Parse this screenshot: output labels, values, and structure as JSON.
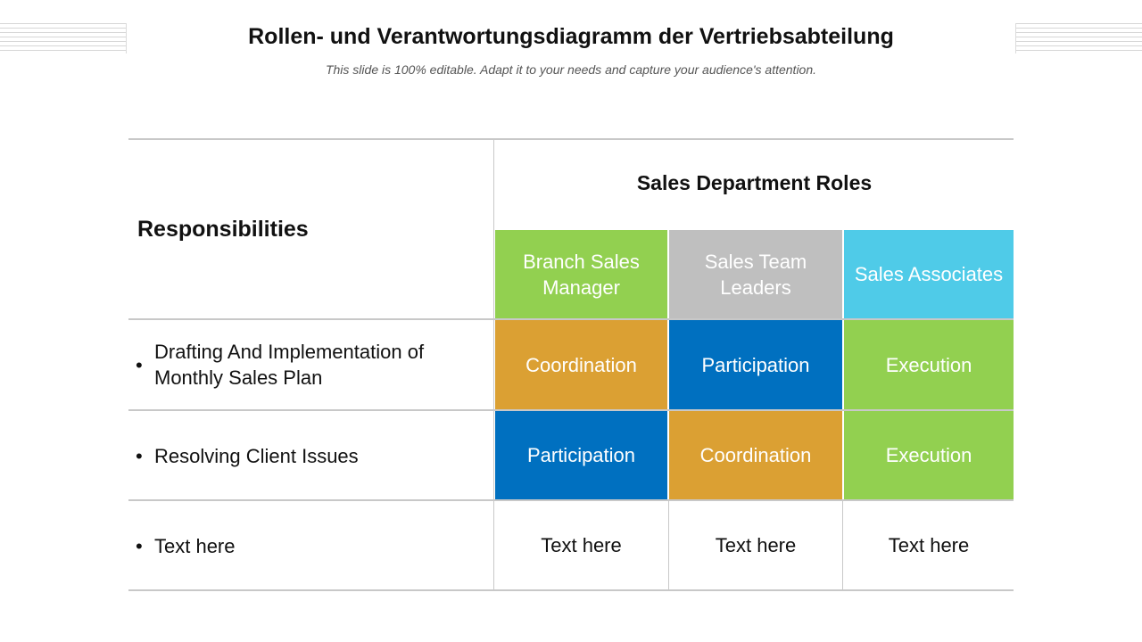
{
  "slide": {
    "title": "Rollen- und Verantwortungsdiagramm der Vertriebsabteilung",
    "subtitle": "This slide is 100% editable. Adapt it to your needs and capture your audience's attention."
  },
  "table": {
    "responsibilities_header": "Responsibilities",
    "roles_header": "Sales Department Roles",
    "bullet": "•",
    "roles": [
      {
        "label": "Branch Sales Manager",
        "color": "#92d050"
      },
      {
        "label": "Sales Team Leaders",
        "color": "#bfbfbf"
      },
      {
        "label": "Sales Associates",
        "color": "#4fcbe8"
      }
    ],
    "rows": [
      {
        "responsibility": "Drafting And Implementation of Monthly Sales Plan",
        "cells": [
          {
            "text": "Coordination",
            "color": "#dba033"
          },
          {
            "text": "Participation",
            "color": "#0070c0"
          },
          {
            "text": "Execution",
            "color": "#92d050"
          }
        ]
      },
      {
        "responsibility": "Resolving Client Issues",
        "cells": [
          {
            "text": "Participation",
            "color": "#0070c0"
          },
          {
            "text": "Coordination",
            "color": "#dba033"
          },
          {
            "text": "Execution",
            "color": "#92d050"
          }
        ]
      },
      {
        "responsibility": "Text here",
        "cells": [
          {
            "text": "Text here",
            "color": "#ffffff"
          },
          {
            "text": "Text here",
            "color": "#ffffff"
          },
          {
            "text": "Text here",
            "color": "#ffffff"
          }
        ]
      }
    ]
  }
}
